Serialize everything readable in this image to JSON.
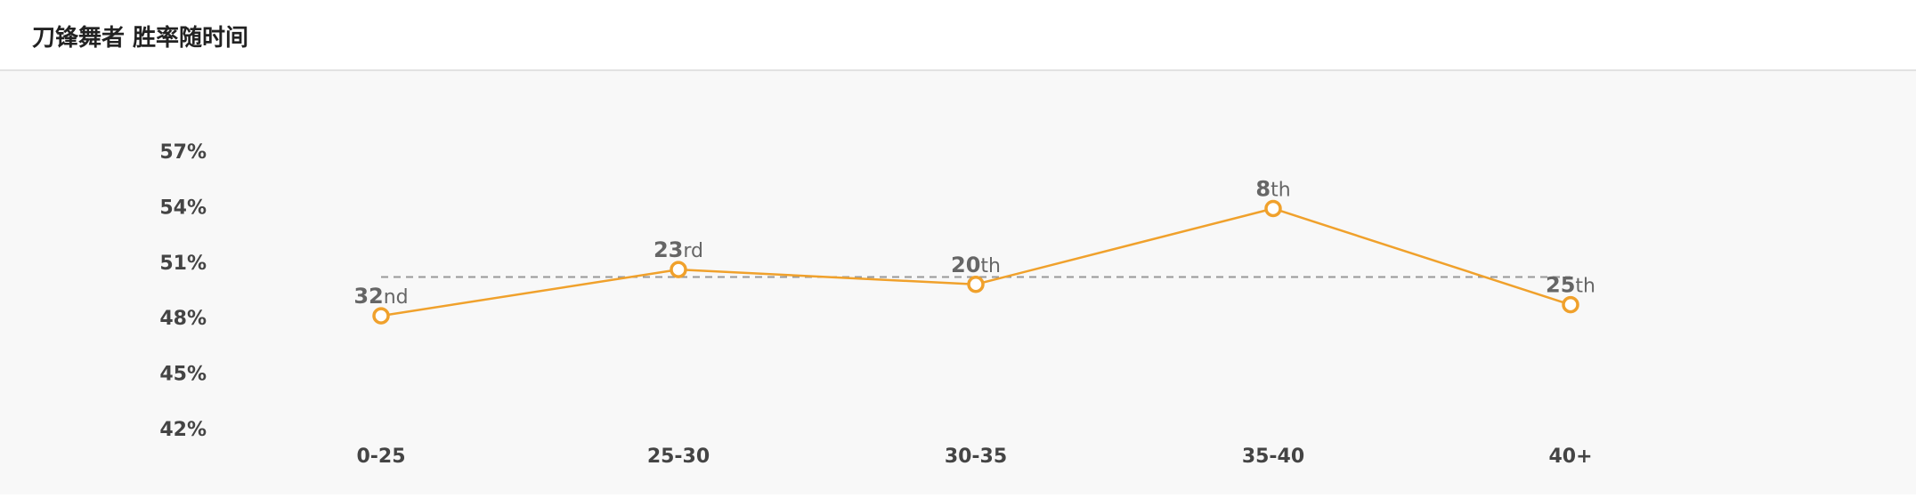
{
  "header": {
    "title": "刀锋舞者 胜率随时间"
  },
  "chart_data": {
    "type": "line",
    "title": "刀锋舞者 胜率随时间",
    "categories": [
      "0-25",
      "25-30",
      "30-35",
      "35-40",
      "40+"
    ],
    "series": [
      {
        "values": [
          48.1,
          50.6,
          49.8,
          53.9,
          48.7
        ]
      }
    ],
    "reference_line": 50.2,
    "ranks": [
      {
        "num": "32",
        "suffix": "nd"
      },
      {
        "num": "23",
        "suffix": "rd"
      },
      {
        "num": "20",
        "suffix": "th"
      },
      {
        "num": "8",
        "suffix": "th"
      },
      {
        "num": "25",
        "suffix": "th"
      }
    ],
    "y_ticks": [
      "57%",
      "54%",
      "51%",
      "48%",
      "45%",
      "42%"
    ],
    "ylim": [
      42,
      57
    ],
    "grid": false,
    "colors": {
      "line": "#f0a12c",
      "reference": "#999999",
      "marker_fill": "#ffffff"
    }
  }
}
